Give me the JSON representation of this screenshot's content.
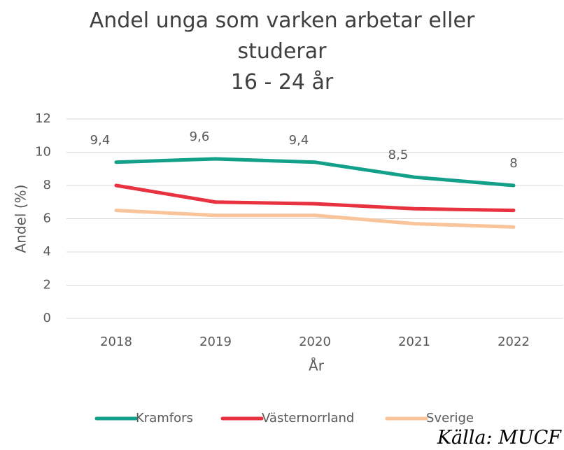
{
  "chart_data": {
    "type": "line",
    "title": "Andel unga som varken arbetar eller studerar",
    "subtitle": "16 - 24 år",
    "source": "Källa: MUCF",
    "x_label": "År",
    "y_label": "Andel (%)",
    "categories": [
      "2018",
      "2019",
      "2020",
      "2021",
      "2022"
    ],
    "series": [
      {
        "name": "Kramfors",
        "color": "#13a08a",
        "values": [
          9.4,
          9.6,
          9.4,
          8.5,
          8
        ],
        "value_labels": [
          "9,4",
          "9,6",
          "9,4",
          "8,5",
          "8"
        ]
      },
      {
        "name": "Västernorrland",
        "color": "#e8323f",
        "values": [
          8,
          7,
          6.9,
          6.6,
          6.5
        ]
      },
      {
        "name": "Sverige",
        "color": "#f9c49a",
        "values": [
          6.5,
          6.2,
          6.2,
          5.7,
          5.5
        ]
      }
    ],
    "ylim": [
      0,
      12
    ],
    "yticks": [
      0,
      2,
      4,
      6,
      8,
      10,
      12
    ],
    "grid": true,
    "legend": "bottom"
  }
}
